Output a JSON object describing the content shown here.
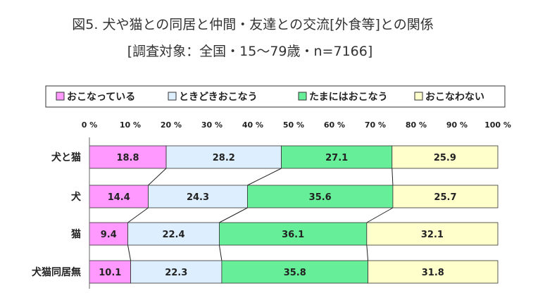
{
  "header": {
    "title": "図5. 犬や猫との同居と仲間・友達との交流[外食等]との関係",
    "subtitle": "[調査対象：全国・15～79歳・n=7166]"
  },
  "chart_data": {
    "type": "bar",
    "orientation": "horizontal",
    "stacked": "percent",
    "title": "図5. 犬や猫との同居と仲間・友達との交流[外食等]との関係",
    "subtitle": "[調査対象：全国・15～79歳・n=7166]",
    "categories": [
      "犬と猫",
      "犬",
      "猫",
      "犬猫同居無"
    ],
    "x_ticks": [
      "0%",
      "10%",
      "20%",
      "30%",
      "40%",
      "50%",
      "60%",
      "70%",
      "80%",
      "90%",
      "100%"
    ],
    "xlim": [
      0,
      100
    ],
    "legend_position": "top",
    "series_lines": true,
    "series": [
      {
        "name": "おこなっている",
        "color": "#ff99ff",
        "values": [
          18.8,
          14.4,
          9.4,
          10.1
        ]
      },
      {
        "name": "ときどきおこなう",
        "color": "#ddeeff",
        "values": [
          28.2,
          24.3,
          22.4,
          22.3
        ]
      },
      {
        "name": "たまにはおこなう",
        "color": "#66ee99",
        "values": [
          27.1,
          35.6,
          36.1,
          35.8
        ]
      },
      {
        "name": "おこなわない",
        "color": "#ffffcc",
        "values": [
          25.9,
          25.7,
          32.1,
          31.8
        ]
      }
    ]
  }
}
